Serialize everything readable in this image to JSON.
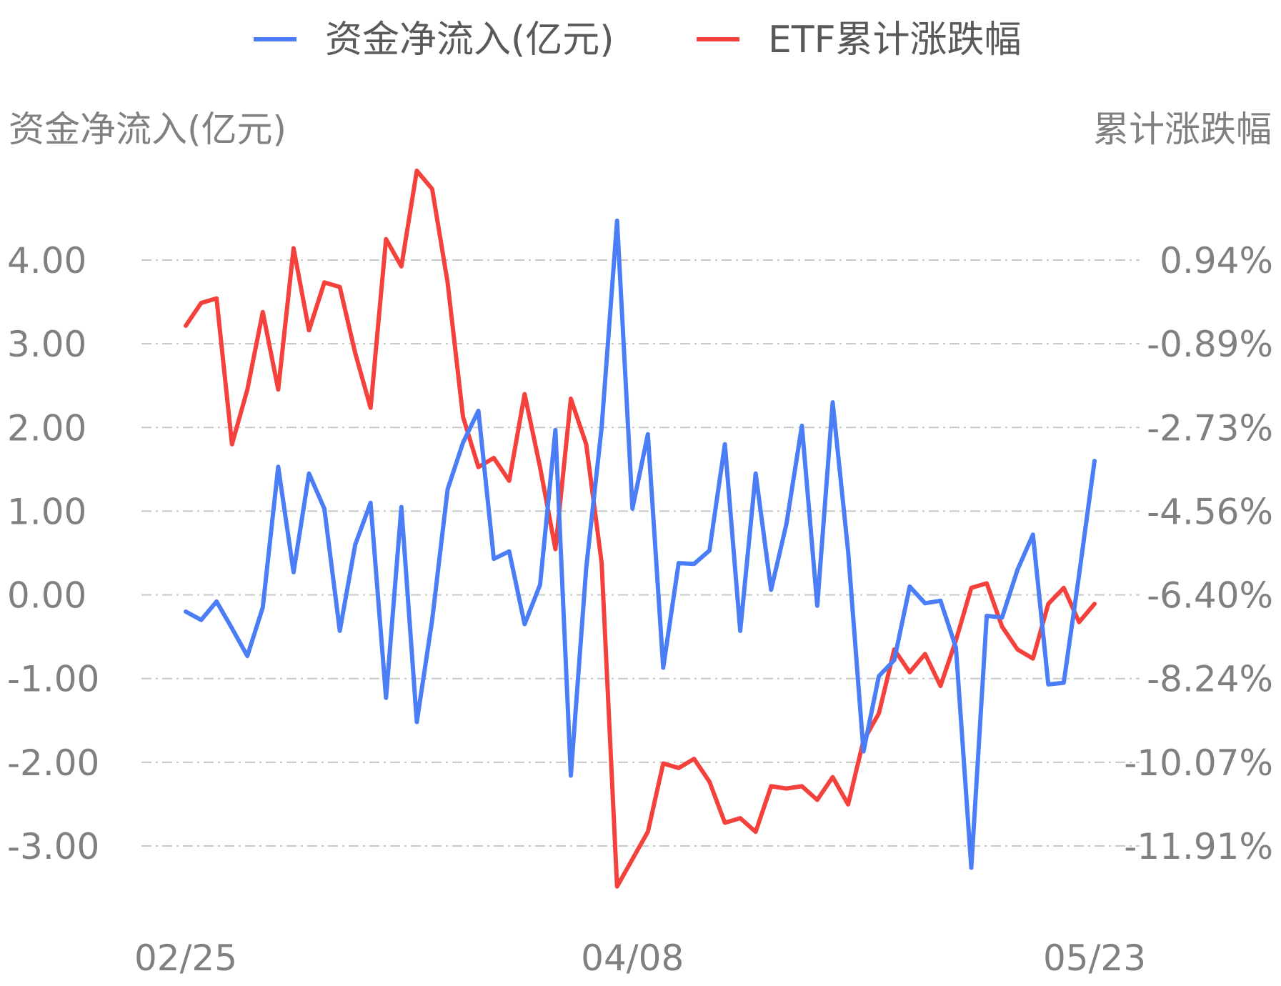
{
  "chart_data": {
    "type": "line",
    "legend": {
      "placement": "top-center"
    },
    "left_axis_title": "资金净流入(亿元)",
    "right_axis_title": "累计涨跌幅",
    "y_left_ticks": [
      "4.00",
      "3.00",
      "2.00",
      "1.00",
      "0.00",
      "-1.00",
      "-2.00",
      "-3.00"
    ],
    "y_left_range": [
      -3,
      4
    ],
    "y_right_ticks": [
      "0.94%",
      "-0.89%",
      "-2.73%",
      "-4.56%",
      "-6.40%",
      "-8.24%",
      "-10.07%",
      "-11.91%"
    ],
    "y_right_range": [
      -11.91,
      0.94
    ],
    "x_tick_labels": [
      {
        "index": 0,
        "label": "02/25"
      },
      {
        "index": 29,
        "label": "04/08"
      },
      {
        "index": 59,
        "label": "05/23"
      }
    ],
    "grid": true,
    "series": [
      {
        "name": "资金净流入(亿元)",
        "color": "#4b7ef6",
        "axis": "left",
        "values": [
          -0.2,
          -0.3,
          -0.08,
          -0.4,
          -0.73,
          -0.15,
          1.53,
          0.27,
          1.45,
          1.03,
          -0.43,
          0.6,
          1.1,
          -1.23,
          1.05,
          -1.52,
          -0.3,
          1.26,
          1.82,
          2.2,
          0.43,
          0.52,
          -0.35,
          0.12,
          1.97,
          -2.16,
          0.32,
          2.0,
          4.47,
          1.03,
          1.92,
          -0.87,
          0.38,
          0.37,
          0.53,
          1.8,
          -0.43,
          1.45,
          0.06,
          0.85,
          2.02,
          -0.13,
          2.3,
          0.52,
          -1.87,
          -0.97,
          -0.78,
          0.1,
          -0.1,
          -0.07,
          -0.63,
          -3.26,
          -0.25,
          -0.27,
          0.3,
          0.72,
          -1.07,
          -1.05,
          0.24,
          1.6
        ]
      },
      {
        "name": "ETF累计涨跌幅",
        "color": "#f5413b",
        "axis": "right",
        "values": [
          -0.5,
          0.0,
          0.1,
          -3.1,
          -1.9,
          -0.2,
          -1.9,
          1.2,
          -0.6,
          0.45,
          0.35,
          -1.1,
          -2.3,
          1.4,
          0.8,
          2.9,
          2.5,
          0.45,
          -2.5,
          -3.6,
          -3.4,
          -3.9,
          -2.0,
          -3.6,
          -5.4,
          -2.1,
          -3.1,
          -5.7,
          -12.8,
          -12.2,
          -11.6,
          -10.1,
          -10.2,
          -10.0,
          -10.5,
          -11.4,
          -11.3,
          -11.6,
          -10.6,
          -10.65,
          -10.6,
          -10.9,
          -10.4,
          -11.0,
          -9.6,
          -9.0,
          -7.6,
          -8.1,
          -7.7,
          -8.4,
          -7.4,
          -6.25,
          -6.15,
          -7.1,
          -7.6,
          -7.8,
          -6.6,
          -6.25,
          -7.0,
          -6.6
        ]
      }
    ]
  }
}
